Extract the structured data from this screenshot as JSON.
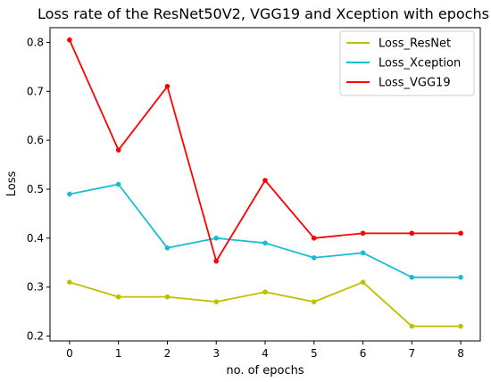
{
  "chart_data": {
    "type": "line",
    "title": "Loss rate of the ResNet50V2, VGG19 and Xception with epochs",
    "xlabel": "no. of epochs",
    "ylabel": "Loss",
    "x": [
      0,
      1,
      2,
      3,
      4,
      5,
      6,
      7,
      8
    ],
    "xticks": [
      "0",
      "1",
      "2",
      "3",
      "4",
      "5",
      "6",
      "7",
      "8"
    ],
    "yticks": [
      "0.2",
      "0.3",
      "0.4",
      "0.5",
      "0.6",
      "0.7",
      "0.8"
    ],
    "xlim": [
      -0.4,
      8.4
    ],
    "ylim": [
      0.19,
      0.83
    ],
    "grid": false,
    "legend_position": "top-right",
    "series": [
      {
        "name": "Loss_ResNet",
        "color": "#bfbf00",
        "values": [
          0.31,
          0.28,
          0.28,
          0.27,
          0.29,
          0.27,
          0.31,
          0.22,
          0.22
        ]
      },
      {
        "name": "Loss_Xception",
        "color": "#17becf",
        "values": [
          0.49,
          0.51,
          0.38,
          0.4,
          0.39,
          0.36,
          0.37,
          0.32,
          0.32
        ]
      },
      {
        "name": "Loss_VGG19",
        "color": "#ff0000",
        "values": [
          0.805,
          0.58,
          0.71,
          0.353,
          0.518,
          0.4,
          0.41,
          0.41,
          0.41
        ]
      }
    ]
  }
}
